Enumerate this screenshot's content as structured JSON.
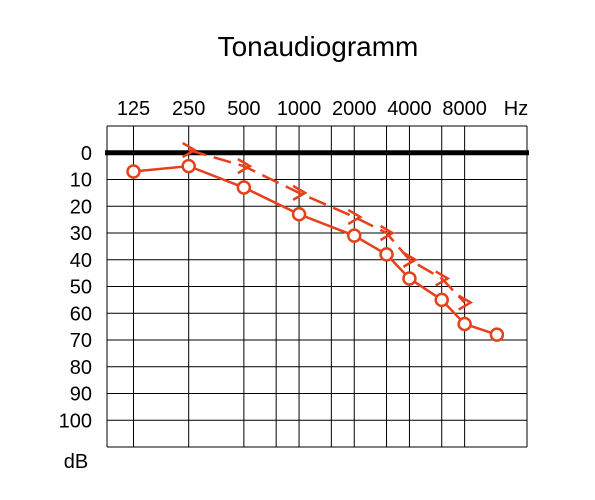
{
  "chart_data": {
    "type": "line",
    "title": "Tonaudiogramm",
    "x_ticks": [
      "125",
      "250",
      "500",
      "1000",
      "2000",
      "4000",
      "8000"
    ],
    "x_unit": "Hz",
    "y_ticks": [
      "0",
      "10",
      "20",
      "30",
      "40",
      "50",
      "60",
      "70",
      "80",
      "90",
      "100"
    ],
    "y_unit": "dB",
    "ylim": [
      -10,
      110
    ],
    "y_inverted": true,
    "x_scale": "log",
    "grid": true,
    "reference_line_db": 0,
    "series": [
      {
        "marker": "o",
        "color": "#e8401a",
        "line_style": "solid",
        "x": [
          125,
          250,
          500,
          1000,
          2000,
          3000,
          4000,
          6000,
          8000,
          12000
        ],
        "y": [
          7,
          5,
          13,
          23,
          31,
          38,
          47,
          55,
          64,
          68
        ]
      },
      {
        "marker": ">",
        "color": "#e8401a",
        "line_style": "dashed",
        "x": [
          250,
          500,
          1000,
          2000,
          3000,
          4000,
          6000,
          8000
        ],
        "y": [
          -1,
          5,
          15,
          24,
          30,
          40,
          47,
          56
        ]
      }
    ]
  }
}
